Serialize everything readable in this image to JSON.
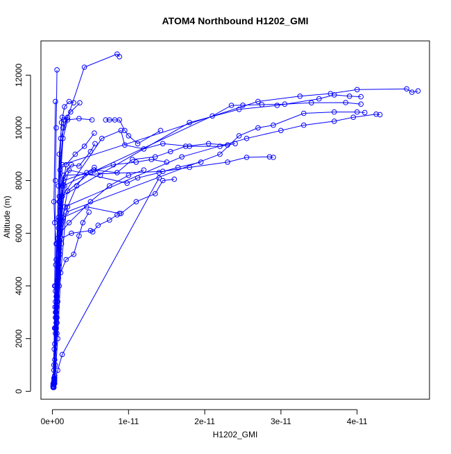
{
  "chart_data": {
    "type": "scatter",
    "title": "ATOM4 Northbound H1202_GMI",
    "xlabel": "H1202_GMI",
    "ylabel": "Altitude (m)",
    "xlim": [
      -1.5e-12,
      4.95e-11
    ],
    "ylim": [
      -300,
      13300
    ],
    "x_ticks": [
      0,
      1e-11,
      2e-11,
      3e-11,
      4e-11
    ],
    "x_tick_labels": [
      "0e+00",
      "1e-11",
      "2e-11",
      "3e-11",
      "4e-11"
    ],
    "y_ticks": [
      0,
      2000,
      4000,
      6000,
      8000,
      10000,
      12000
    ],
    "y_tick_labels": [
      "0",
      "2000",
      "4000",
      "6000",
      "8000",
      "10000",
      "12000"
    ],
    "grid": false,
    "marker": "open-circle",
    "connect_points": true,
    "colors": {
      "series": "#0000ff",
      "axis": "#000000",
      "background": "#ffffff"
    },
    "series": [
      {
        "x": [
          2e-13,
          3e-13,
          4e-13,
          3e-13,
          5e-13,
          4e-13,
          6e-13,
          5e-13,
          7e-13,
          8e-13,
          1e-12,
          1.2e-12,
          1.5e-12,
          1.45e-11,
          1.8e-11,
          2.3e-11,
          2.55e-11,
          2.85e-11,
          2.9e-11
        ],
        "y": [
          150,
          500,
          1000,
          1800,
          2600,
          3400,
          4200,
          5000,
          5800,
          6600,
          7200,
          7800,
          8200,
          8350,
          8500,
          8700,
          8880,
          8900,
          8880
        ]
      },
      {
        "x": [
          1e-13,
          3e-13,
          6e-13,
          9e-13,
          1.2e-12,
          1.6e-12,
          1.7e-11,
          2.55e-11,
          3e-11,
          3.3e-11,
          3.7e-11,
          3.95e-11,
          4.25e-11,
          4.3e-11
        ],
        "y": [
          200,
          1200,
          2600,
          4000,
          5600,
          7000,
          8900,
          9600,
          9900,
          10100,
          10250,
          10400,
          10520,
          10500
        ]
      },
      {
        "x": [
          3e-13,
          7e-13,
          1.1e-12,
          1.8e-12,
          2.2e-11,
          2.45e-11,
          2.7e-11,
          2.9e-11,
          3.3e-11,
          3.7e-11,
          4e-11,
          4.1e-11
        ],
        "y": [
          300,
          2000,
          4500,
          6800,
          9000,
          9700,
          10000,
          10100,
          10550,
          10600,
          10600,
          10580
        ]
      },
      {
        "x": [
          2e-13,
          6e-13,
          1e-12,
          1.4e-12,
          2.1e-11,
          2.35e-11,
          2.5e-11,
          2.75e-11,
          3.05e-11,
          3.4e-11,
          3.85e-11,
          4.05e-11
        ],
        "y": [
          250,
          2200,
          5200,
          7800,
          10450,
          10850,
          10860,
          10880,
          10900,
          10950,
          10960,
          10900
        ]
      },
      {
        "x": [
          1e-13,
          5e-13,
          9e-13,
          1.3e-12,
          2.7e-11,
          3.25e-11,
          3.65e-11,
          4e-11,
          4.65e-11,
          4.72e-11,
          4.8e-11
        ],
        "y": [
          180,
          2400,
          5600,
          8600,
          11000,
          11200,
          11300,
          11450,
          11480,
          11350,
          11400
        ]
      },
      {
        "x": [
          3e-13,
          6e-13,
          1.2e-12,
          1.8e-11,
          2.45e-11,
          2.95e-11,
          3.5e-11,
          3.7e-11,
          3.9e-11,
          4.05e-11
        ],
        "y": [
          400,
          3600,
          7400,
          10200,
          10700,
          10850,
          11100,
          11250,
          11200,
          11180
        ]
      },
      {
        "x": [
          2e-13,
          5e-13,
          8e-13,
          1.1e-12,
          4.2e-12,
          8.5e-12,
          8.8e-12
        ],
        "y": [
          300,
          3000,
          6500,
          9600,
          12300,
          12800,
          12700
        ]
      },
      {
        "x": [
          1e-13,
          4e-13,
          8e-13,
          1.3e-12,
          6.5e-12,
          9e-12,
          9.5e-12,
          1.2e-11,
          1.45e-11,
          1.8e-11,
          2.2e-11,
          2.4e-11
        ],
        "y": [
          150,
          2200,
          4800,
          7400,
          9600,
          9900,
          9350,
          9200,
          9400,
          9300,
          9300,
          9400
        ]
      },
      {
        "x": [
          2e-13,
          6e-13,
          1e-12,
          1.5e-12,
          5.5e-12,
          8.5e-12,
          1.05e-11,
          1.35e-11,
          1.55e-11,
          1.75e-11,
          2.05e-11,
          2.3e-11
        ],
        "y": [
          350,
          2800,
          6000,
          8000,
          8400,
          8300,
          8800,
          8900,
          9100,
          9300,
          9400,
          9350
        ]
      },
      {
        "x": [
          3e-13,
          7e-13,
          1.1e-12,
          2e-12,
          5e-12,
          8e-12,
          1.1e-11,
          1.3e-11,
          1.5e-11
        ],
        "y": [
          500,
          3400,
          6200,
          7600,
          8300,
          8600,
          8700,
          8800,
          8700
        ]
      },
      {
        "x": [
          1e-13,
          5e-13,
          9e-13,
          1.6e-12,
          2.2e-12,
          9.8e-12,
          1.12e-11,
          1.4e-11,
          1.65e-11,
          1.95e-11
        ],
        "y": [
          150,
          2600,
          5400,
          7800,
          8400,
          7900,
          8100,
          8300,
          8500,
          8700
        ]
      },
      {
        "x": [
          2e-13,
          7e-13,
          1.3e-12,
          1.4e-11
        ],
        "y": [
          300,
          800,
          1400,
          8100
        ]
      },
      {
        "x": [
          1e-13,
          4e-13,
          9e-13,
          1.4e-12,
          4.5e-12,
          8.8e-12,
          9e-12,
          1.1e-11,
          1.35e-11,
          1.45e-11,
          1.6e-11
        ],
        "y": [
          200,
          2800,
          5400,
          6600,
          7000,
          6750,
          6750,
          7200,
          7500,
          8000,
          8050
        ]
      },
      {
        "x": [
          3e-13,
          6e-13,
          1e-12,
          2.2e-12,
          5e-12,
          7.5e-12,
          1e-11,
          1.2e-11
        ],
        "y": [
          600,
          3400,
          6000,
          6400,
          7200,
          7800,
          8200,
          8400
        ]
      },
      {
        "x": [
          2e-13,
          6e-13,
          1.2e-12,
          2.5e-12,
          5e-12,
          5.3e-12,
          6e-12,
          7.5e-12,
          8.5e-12
        ],
        "y": [
          500,
          3200,
          5800,
          6000,
          6100,
          6050,
          6300,
          6500,
          6700
        ]
      },
      {
        "x": [
          1e-13,
          4e-13,
          8e-13,
          1.8e-12,
          2.8e-12,
          3.5e-12,
          4e-12,
          4.8e-12
        ],
        "y": [
          300,
          2400,
          4300,
          5000,
          5200,
          5900,
          6400,
          6800
        ]
      },
      {
        "x": [
          2e-13,
          5e-13,
          9e-13,
          2e-12,
          3.2e-12,
          4.5e-12,
          5.5e-12,
          6.3e-12
        ],
        "y": [
          400,
          2800,
          5600,
          7000,
          7800,
          8300,
          8500,
          8200
        ]
      },
      {
        "x": [
          1e-13,
          4e-13,
          8e-13,
          1.5e-12,
          2.5e-12,
          3.5e-12,
          5e-12,
          5.6e-12
        ],
        "y": [
          250,
          3000,
          6200,
          8200,
          8600,
          8550,
          9100,
          9400
        ]
      },
      {
        "x": [
          2e-13,
          6e-13,
          1e-12,
          1.8e-12,
          3e-12,
          4.2e-12,
          5.5e-12
        ],
        "y": [
          350,
          3600,
          7000,
          8600,
          9000,
          9300,
          9800
        ]
      },
      {
        "x": [
          1e-13,
          5e-13,
          9e-13,
          1.4e-12,
          2e-12,
          3.5e-12,
          5.2e-12
        ],
        "y": [
          200,
          3200,
          7400,
          9600,
          10300,
          10350,
          10300
        ]
      },
      {
        "x": [
          3e-13,
          6e-13,
          1e-12,
          1.5e-12,
          2.4e-12,
          3.6e-12
        ],
        "y": [
          500,
          4000,
          8400,
          10300,
          10600,
          10950
        ]
      },
      {
        "x": [
          1e-13,
          4e-13,
          8e-13,
          1.2e-12,
          1.6e-12,
          2.2e-12,
          2.8e-12
        ],
        "y": [
          200,
          3800,
          7800,
          10200,
          10800,
          11000,
          10950
        ]
      },
      {
        "x": [
          2e-13,
          5e-13,
          9e-13,
          1.4e-12,
          2e-12
        ],
        "y": [
          400,
          3600,
          7200,
          10000,
          10400
        ]
      },
      {
        "x": [
          1e-13,
          3e-13,
          6e-13,
          9e-13,
          1.3e-12
        ],
        "y": [
          250,
          2400,
          5600,
          9000,
          10400
        ]
      },
      {
        "x": [
          2e-13,
          3e-13,
          4e-13,
          5e-13,
          6e-13
        ],
        "y": [
          1000,
          4000,
          8000,
          10000,
          12200
        ]
      },
      {
        "x": [
          7e-12,
          7.5e-12,
          8.2e-12,
          8.8e-12,
          9.5e-12,
          1e-11,
          1.12e-11,
          1.42e-11
        ],
        "y": [
          10300,
          10300,
          10300,
          10300,
          9900,
          9700,
          9400,
          9900
        ]
      },
      {
        "x": [
          2e-13,
          2.5e-13,
          3e-13,
          3.5e-13,
          4e-13,
          4.5e-13,
          5e-13,
          3e-13,
          2e-13,
          4e-13
        ],
        "y": [
          800,
          1600,
          2400,
          3200,
          4000,
          4800,
          5600,
          6400,
          7200,
          11000
        ]
      }
    ]
  }
}
